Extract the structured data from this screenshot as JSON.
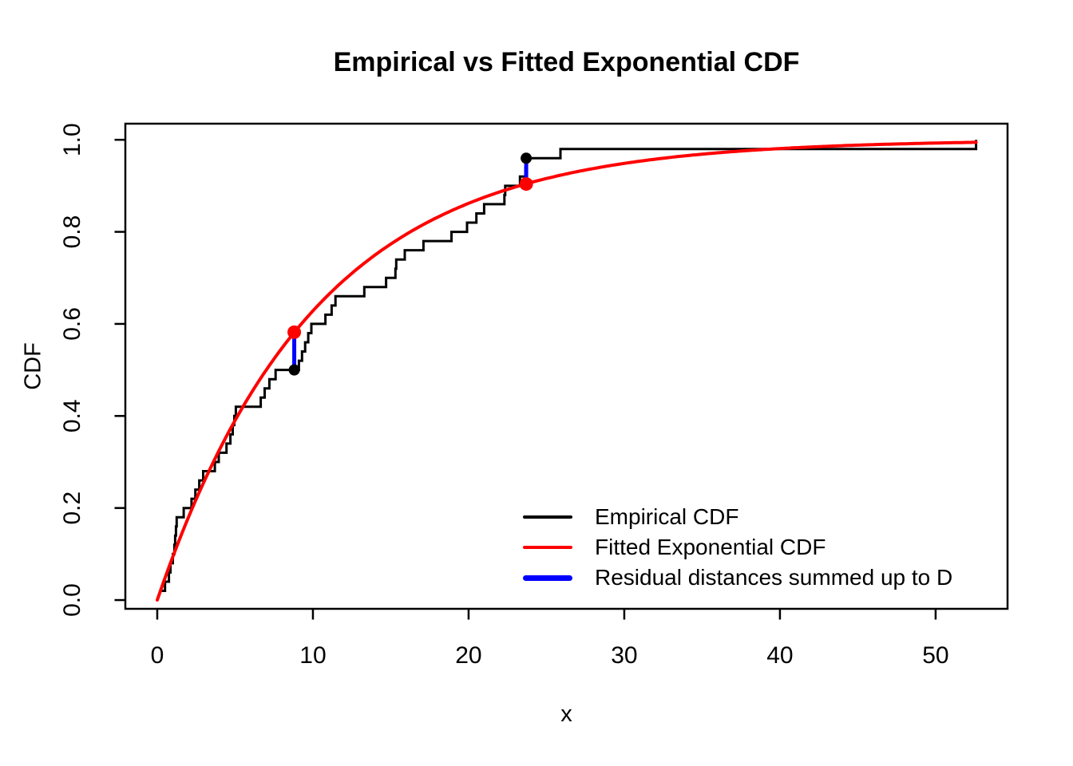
{
  "chart_data": {
    "type": "line",
    "title": "Empirical vs Fitted Exponential CDF",
    "xlabel": "x",
    "ylabel": "CDF",
    "xlim": [
      -2.05,
      54.62
    ],
    "ylim": [
      -0.019,
      1.035
    ],
    "x_ticks": [
      0,
      10,
      20,
      30,
      40,
      50
    ],
    "y_ticks": [
      0.0,
      0.2,
      0.4,
      0.6,
      0.8,
      1.0
    ],
    "grid": false,
    "legend_position": "bottom-right",
    "n": 50,
    "ecdf_sample_sorted": [
      0.15,
      0.5,
      0.75,
      0.85,
      1.0,
      1.1,
      1.15,
      1.2,
      1.25,
      1.7,
      2.2,
      2.45,
      2.7,
      2.95,
      3.7,
      3.95,
      4.45,
      4.7,
      4.85,
      4.95,
      5.05,
      6.65,
      6.9,
      7.2,
      7.6,
      9.1,
      9.3,
      9.5,
      9.7,
      9.9,
      10.8,
      11.2,
      11.45,
      13.3,
      14.7,
      15.3,
      15.35,
      15.9,
      17.1,
      18.9,
      19.9,
      20.5,
      21.0,
      22.3,
      22.35,
      23.3,
      23.65,
      23.7,
      25.9,
      52.6
    ],
    "fitted": {
      "model": "exponential",
      "rate_lambda": 0.099,
      "x_range": [
        0,
        52.6
      ]
    },
    "residual_markers": [
      {
        "x": 8.8,
        "empirical_cdf": 0.5,
        "fitted_cdf": 0.582
      },
      {
        "x": 23.7,
        "empirical_cdf": 0.96,
        "fitted_cdf": 0.904
      }
    ],
    "series": [
      {
        "name": "Empirical CDF",
        "type": "step",
        "color": "#000000",
        "line_width": 3
      },
      {
        "name": "Fitted Exponential CDF",
        "type": "curve",
        "color": "#FF0000",
        "line_width": 4
      },
      {
        "name": "Residual distances summed up to D",
        "type": "vertical-segments",
        "color": "#0000FF",
        "line_width": 5
      }
    ]
  },
  "legend": {
    "entries": [
      {
        "label": "Empirical CDF",
        "color": "#000000",
        "swatch_height": 4
      },
      {
        "label": "Fitted Exponential CDF",
        "color": "#FF0000",
        "swatch_height": 4
      },
      {
        "label": "Residual distances summed up to D",
        "color": "#0000FF",
        "swatch_height": 7
      }
    ]
  },
  "colors": {
    "foreground": "#000000",
    "background": "#FFFFFF",
    "empirical": "#000000",
    "fitted": "#FF0000",
    "residual": "#0000FF"
  }
}
